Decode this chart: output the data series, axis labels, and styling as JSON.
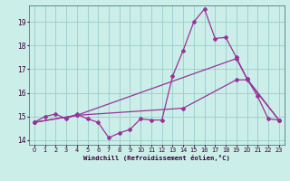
{
  "xlabel": "Windchill (Refroidissement éolien,°C)",
  "background_color": "#cceee8",
  "line_color": "#993399",
  "grid_color": "#99cccc",
  "xlim": [
    -0.5,
    23.5
  ],
  "ylim": [
    13.8,
    19.7
  ],
  "yticks": [
    14,
    15,
    16,
    17,
    18,
    19
  ],
  "xticks": [
    0,
    1,
    2,
    3,
    4,
    5,
    6,
    7,
    8,
    9,
    10,
    11,
    12,
    13,
    14,
    15,
    16,
    17,
    18,
    19,
    20,
    21,
    22,
    23
  ],
  "line1_x": [
    0,
    1,
    2,
    3,
    4,
    5,
    6,
    7,
    8,
    9,
    10,
    11,
    12,
    13,
    14,
    15,
    16,
    17,
    18,
    19,
    20,
    21,
    22,
    23
  ],
  "line1_y": [
    14.75,
    15.0,
    15.1,
    14.9,
    15.1,
    14.9,
    14.75,
    14.1,
    14.3,
    14.45,
    14.9,
    14.85,
    14.85,
    16.7,
    17.8,
    19.0,
    19.55,
    18.3,
    18.35,
    17.5,
    16.6,
    15.85,
    14.9,
    14.85
  ],
  "line2_x": [
    0,
    4,
    14,
    19,
    20,
    23
  ],
  "line2_y": [
    14.75,
    15.05,
    15.35,
    16.55,
    16.55,
    14.85
  ],
  "line3_x": [
    0,
    4,
    19,
    20,
    23
  ],
  "line3_y": [
    14.75,
    15.05,
    17.45,
    16.6,
    14.85
  ]
}
